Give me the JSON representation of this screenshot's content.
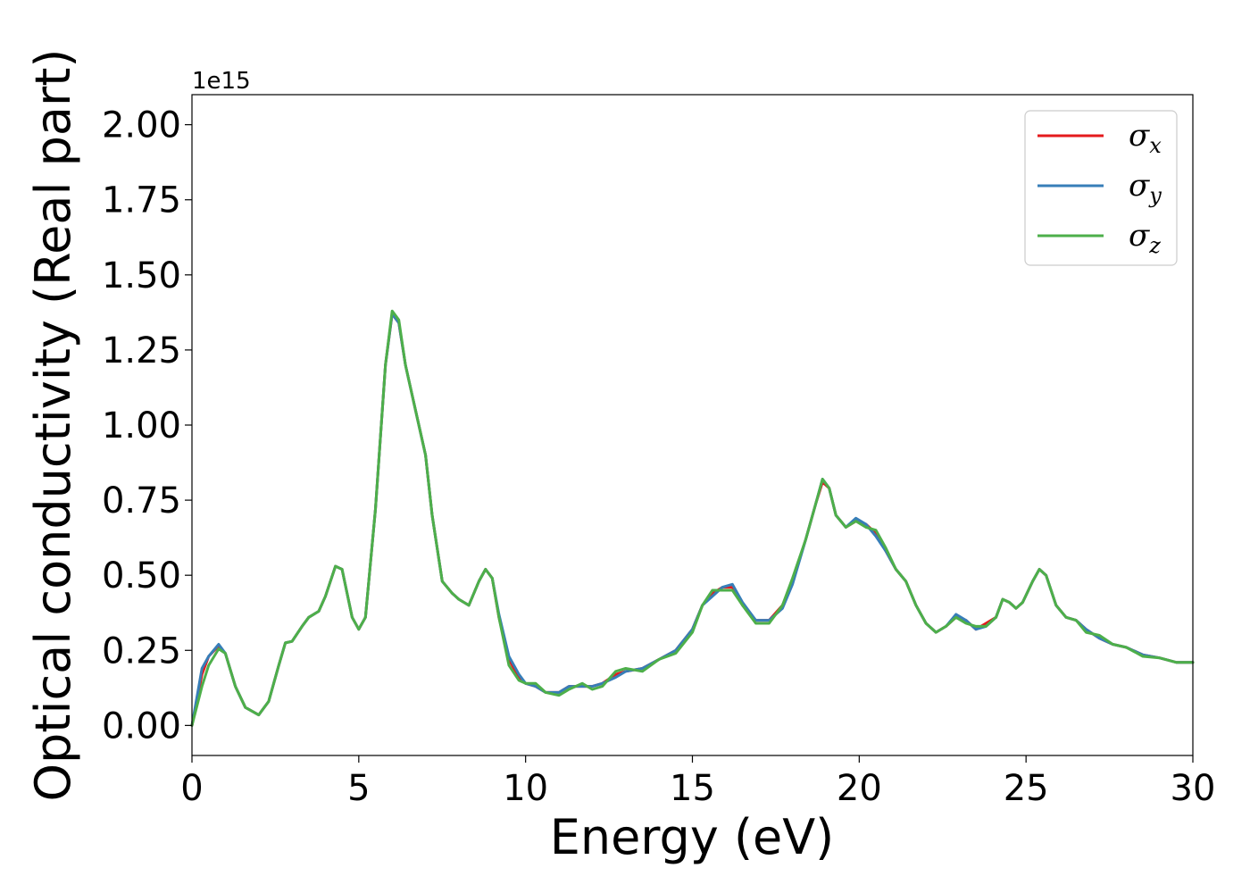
{
  "chart_data": {
    "type": "line",
    "xlabel": "Energy (eV)",
    "ylabel": "Optical conductivity (Real part)",
    "y_offset_label": "1e15",
    "xlim": [
      0,
      30
    ],
    "ylim": [
      -0.1,
      2.1
    ],
    "x_ticks": [
      "0",
      "5",
      "10",
      "15",
      "20",
      "25",
      "30"
    ],
    "y_ticks": [
      "0.00",
      "0.25",
      "0.50",
      "0.75",
      "1.00",
      "1.25",
      "1.50",
      "1.75",
      "2.00"
    ],
    "legend_position": "top-right",
    "series": [
      {
        "name_symbol": "σ",
        "name_sub": "x",
        "color": "#e41a1c",
        "x": [
          0,
          0.3,
          0.5,
          0.8,
          1.0,
          1.3,
          1.6,
          2.0,
          2.3,
          2.6,
          2.8,
          3.0,
          3.3,
          3.5,
          3.8,
          4.0,
          4.3,
          4.5,
          4.8,
          5.0,
          5.2,
          5.5,
          5.8,
          6.0,
          6.2,
          6.4,
          6.6,
          6.8,
          7.0,
          7.2,
          7.5,
          7.8,
          8.0,
          8.3,
          8.6,
          8.8,
          9.0,
          9.2,
          9.5,
          9.8,
          10.0,
          10.3,
          10.6,
          11.0,
          11.3,
          11.7,
          12.0,
          12.3,
          12.7,
          13.0,
          13.5,
          14.0,
          14.5,
          15.0,
          15.3,
          15.6,
          15.9,
          16.2,
          16.5,
          16.9,
          17.3,
          17.7,
          18.0,
          18.4,
          18.7,
          18.9,
          19.1,
          19.3,
          19.6,
          19.9,
          20.2,
          20.5,
          20.8,
          21.1,
          21.4,
          21.7,
          22.0,
          22.3,
          22.6,
          22.9,
          23.2,
          23.5,
          23.8,
          24.1,
          24.3,
          24.5,
          24.7,
          24.9,
          25.2,
          25.4,
          25.6,
          25.9,
          26.2,
          26.5,
          26.8,
          27.2,
          27.6,
          28.0,
          28.5,
          29.0,
          29.5,
          30.0
        ],
        "y": [
          0.0,
          0.17,
          0.23,
          0.265,
          0.24,
          0.13,
          0.06,
          0.035,
          0.08,
          0.2,
          0.275,
          0.28,
          0.33,
          0.36,
          0.38,
          0.43,
          0.53,
          0.52,
          0.36,
          0.32,
          0.36,
          0.72,
          1.2,
          1.37,
          1.34,
          1.2,
          1.1,
          1.0,
          0.9,
          0.7,
          0.48,
          0.44,
          0.42,
          0.4,
          0.48,
          0.52,
          0.49,
          0.36,
          0.22,
          0.16,
          0.14,
          0.13,
          0.11,
          0.11,
          0.13,
          0.13,
          0.13,
          0.14,
          0.17,
          0.18,
          0.19,
          0.22,
          0.25,
          0.32,
          0.4,
          0.44,
          0.46,
          0.46,
          0.4,
          0.35,
          0.35,
          0.4,
          0.48,
          0.62,
          0.74,
          0.81,
          0.79,
          0.7,
          0.66,
          0.68,
          0.67,
          0.64,
          0.58,
          0.52,
          0.48,
          0.4,
          0.34,
          0.31,
          0.33,
          0.36,
          0.35,
          0.32,
          0.34,
          0.36,
          0.42,
          0.41,
          0.39,
          0.41,
          0.48,
          0.52,
          0.5,
          0.4,
          0.36,
          0.35,
          0.32,
          0.29,
          0.27,
          0.26,
          0.235,
          0.225,
          0.21,
          0.21
        ]
      },
      {
        "name_symbol": "σ",
        "name_sub": "y",
        "color": "#377eb8",
        "x": [
          0,
          0.3,
          0.5,
          0.8,
          1.0,
          1.3,
          1.6,
          2.0,
          2.3,
          2.6,
          2.8,
          3.0,
          3.3,
          3.5,
          3.8,
          4.0,
          4.3,
          4.5,
          4.8,
          5.0,
          5.2,
          5.5,
          5.8,
          6.0,
          6.2,
          6.4,
          6.6,
          6.8,
          7.0,
          7.2,
          7.5,
          7.8,
          8.0,
          8.3,
          8.6,
          8.8,
          9.0,
          9.2,
          9.5,
          9.8,
          10.0,
          10.3,
          10.6,
          11.0,
          11.3,
          11.7,
          12.0,
          12.3,
          12.7,
          13.0,
          13.5,
          14.0,
          14.5,
          15.0,
          15.3,
          15.6,
          15.9,
          16.2,
          16.5,
          16.9,
          17.3,
          17.7,
          18.0,
          18.4,
          18.7,
          18.9,
          19.1,
          19.3,
          19.6,
          19.9,
          20.2,
          20.5,
          20.8,
          21.1,
          21.4,
          21.7,
          22.0,
          22.3,
          22.6,
          22.9,
          23.2,
          23.5,
          23.8,
          24.1,
          24.3,
          24.5,
          24.7,
          24.9,
          25.2,
          25.4,
          25.6,
          25.9,
          26.2,
          26.5,
          26.8,
          27.2,
          27.6,
          28.0,
          28.5,
          29.0,
          29.5,
          30.0
        ],
        "y": [
          0.0,
          0.19,
          0.23,
          0.27,
          0.24,
          0.13,
          0.06,
          0.035,
          0.08,
          0.2,
          0.275,
          0.28,
          0.33,
          0.36,
          0.38,
          0.43,
          0.53,
          0.52,
          0.36,
          0.32,
          0.36,
          0.72,
          1.2,
          1.37,
          1.34,
          1.2,
          1.1,
          1.0,
          0.9,
          0.7,
          0.48,
          0.44,
          0.42,
          0.4,
          0.48,
          0.52,
          0.49,
          0.37,
          0.23,
          0.17,
          0.14,
          0.13,
          0.11,
          0.11,
          0.13,
          0.13,
          0.13,
          0.14,
          0.16,
          0.18,
          0.19,
          0.22,
          0.25,
          0.32,
          0.4,
          0.43,
          0.46,
          0.47,
          0.41,
          0.35,
          0.35,
          0.39,
          0.47,
          0.62,
          0.74,
          0.82,
          0.79,
          0.7,
          0.66,
          0.69,
          0.67,
          0.63,
          0.58,
          0.52,
          0.48,
          0.4,
          0.34,
          0.31,
          0.33,
          0.37,
          0.35,
          0.32,
          0.33,
          0.36,
          0.42,
          0.41,
          0.39,
          0.41,
          0.48,
          0.52,
          0.5,
          0.4,
          0.36,
          0.35,
          0.32,
          0.29,
          0.27,
          0.26,
          0.235,
          0.225,
          0.21,
          0.21
        ]
      },
      {
        "name_symbol": "σ",
        "name_sub": "z",
        "color": "#4daf4a",
        "x": [
          0,
          0.3,
          0.5,
          0.8,
          1.0,
          1.3,
          1.6,
          2.0,
          2.3,
          2.6,
          2.8,
          3.0,
          3.3,
          3.5,
          3.8,
          4.0,
          4.3,
          4.5,
          4.8,
          5.0,
          5.2,
          5.5,
          5.8,
          6.0,
          6.2,
          6.4,
          6.6,
          6.8,
          7.0,
          7.2,
          7.5,
          7.8,
          8.0,
          8.3,
          8.6,
          8.8,
          9.0,
          9.2,
          9.5,
          9.8,
          10.0,
          10.3,
          10.6,
          11.0,
          11.3,
          11.7,
          12.0,
          12.3,
          12.7,
          13.0,
          13.5,
          14.0,
          14.5,
          15.0,
          15.3,
          15.6,
          15.9,
          16.2,
          16.5,
          16.9,
          17.3,
          17.7,
          18.0,
          18.4,
          18.7,
          18.9,
          19.1,
          19.3,
          19.6,
          19.9,
          20.2,
          20.5,
          20.8,
          21.1,
          21.4,
          21.7,
          22.0,
          22.3,
          22.6,
          22.9,
          23.2,
          23.5,
          23.8,
          24.1,
          24.3,
          24.5,
          24.7,
          24.9,
          25.2,
          25.4,
          25.6,
          25.9,
          26.2,
          26.5,
          26.8,
          27.2,
          27.6,
          28.0,
          28.5,
          29.0,
          29.5,
          30.0
        ],
        "y": [
          0.0,
          0.13,
          0.2,
          0.255,
          0.24,
          0.13,
          0.06,
          0.035,
          0.08,
          0.2,
          0.275,
          0.28,
          0.33,
          0.36,
          0.38,
          0.43,
          0.53,
          0.52,
          0.36,
          0.32,
          0.36,
          0.72,
          1.2,
          1.38,
          1.35,
          1.2,
          1.1,
          1.0,
          0.9,
          0.7,
          0.48,
          0.44,
          0.42,
          0.4,
          0.48,
          0.52,
          0.49,
          0.36,
          0.2,
          0.15,
          0.14,
          0.14,
          0.11,
          0.1,
          0.12,
          0.14,
          0.12,
          0.13,
          0.18,
          0.19,
          0.18,
          0.22,
          0.24,
          0.31,
          0.4,
          0.45,
          0.45,
          0.45,
          0.4,
          0.34,
          0.34,
          0.4,
          0.49,
          0.62,
          0.74,
          0.82,
          0.79,
          0.7,
          0.66,
          0.68,
          0.66,
          0.65,
          0.59,
          0.52,
          0.48,
          0.4,
          0.34,
          0.31,
          0.33,
          0.36,
          0.34,
          0.33,
          0.33,
          0.36,
          0.42,
          0.41,
          0.39,
          0.41,
          0.48,
          0.52,
          0.5,
          0.4,
          0.36,
          0.35,
          0.31,
          0.3,
          0.27,
          0.26,
          0.23,
          0.225,
          0.21,
          0.21
        ]
      }
    ]
  }
}
